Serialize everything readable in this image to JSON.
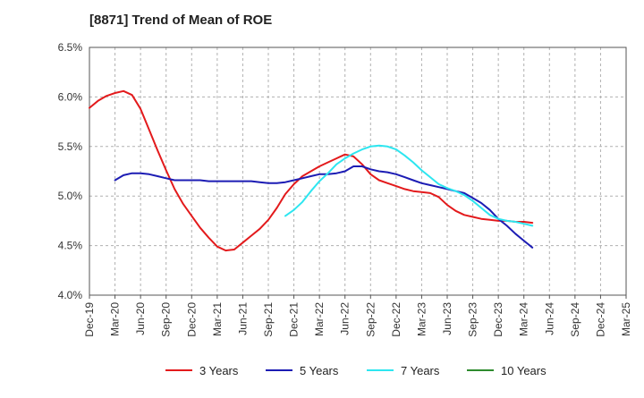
{
  "chart_data": {
    "type": "line",
    "title": "[8871]  Trend of Mean of ROE",
    "xlabel": "",
    "ylabel": "",
    "x_ticks": [
      "Dec-19",
      "Mar-20",
      "Jun-20",
      "Sep-20",
      "Dec-20",
      "Mar-21",
      "Jun-21",
      "Sep-21",
      "Dec-21",
      "Mar-22",
      "Jun-22",
      "Sep-22",
      "Dec-22",
      "Mar-23",
      "Jun-23",
      "Sep-23",
      "Dec-23",
      "Mar-24",
      "Jun-24",
      "Sep-24",
      "Dec-24",
      "Mar-25"
    ],
    "y_ticks": [
      "4.0%",
      "4.5%",
      "5.0%",
      "5.5%",
      "6.0%",
      "6.5%"
    ],
    "ylim": [
      4.0,
      6.5
    ],
    "grid": "horizontal dashed",
    "legend_position": "bottom",
    "series": [
      {
        "name": "3 Years",
        "color": "#e31a1c",
        "values": [
          [
            0,
            5.89
          ],
          [
            1,
            5.96
          ],
          [
            2,
            6.01
          ],
          [
            3,
            6.04
          ],
          [
            4,
            6.06
          ],
          [
            5,
            6.02
          ],
          [
            6,
            5.88
          ],
          [
            7,
            5.67
          ],
          [
            8,
            5.46
          ],
          [
            9,
            5.26
          ],
          [
            10,
            5.07
          ],
          [
            11,
            4.92
          ],
          [
            12,
            4.8
          ],
          [
            13,
            4.68
          ],
          [
            14,
            4.58
          ],
          [
            15,
            4.49
          ],
          [
            16,
            4.45
          ],
          [
            17,
            4.46
          ],
          [
            18,
            4.53
          ],
          [
            19,
            4.6
          ],
          [
            20,
            4.67
          ],
          [
            21,
            4.76
          ],
          [
            22,
            4.88
          ],
          [
            23,
            5.02
          ],
          [
            24,
            5.12
          ],
          [
            25,
            5.2
          ],
          [
            26,
            5.25
          ],
          [
            27,
            5.3
          ],
          [
            28,
            5.34
          ],
          [
            29,
            5.38
          ],
          [
            30,
            5.42
          ],
          [
            31,
            5.4
          ],
          [
            32,
            5.32
          ],
          [
            33,
            5.22
          ],
          [
            34,
            5.16
          ],
          [
            35,
            5.13
          ],
          [
            36,
            5.1
          ],
          [
            37,
            5.07
          ],
          [
            38,
            5.05
          ],
          [
            39,
            5.04
          ],
          [
            40,
            5.03
          ],
          [
            41,
            4.99
          ],
          [
            42,
            4.91
          ],
          [
            43,
            4.85
          ],
          [
            44,
            4.81
          ],
          [
            45,
            4.79
          ],
          [
            46,
            4.77
          ],
          [
            47,
            4.76
          ],
          [
            48,
            4.75
          ],
          [
            49,
            4.75
          ],
          [
            50,
            4.74
          ],
          [
            51,
            4.74
          ],
          [
            52,
            4.73
          ]
        ]
      },
      {
        "name": "5 Years",
        "color": "#1c1cb4",
        "values": [
          [
            3,
            5.16
          ],
          [
            4,
            5.21
          ],
          [
            5,
            5.23
          ],
          [
            6,
            5.23
          ],
          [
            7,
            5.22
          ],
          [
            8,
            5.2
          ],
          [
            9,
            5.18
          ],
          [
            10,
            5.16
          ],
          [
            11,
            5.16
          ],
          [
            12,
            5.16
          ],
          [
            13,
            5.16
          ],
          [
            14,
            5.15
          ],
          [
            15,
            5.15
          ],
          [
            16,
            5.15
          ],
          [
            17,
            5.15
          ],
          [
            18,
            5.15
          ],
          [
            19,
            5.15
          ],
          [
            20,
            5.14
          ],
          [
            21,
            5.13
          ],
          [
            22,
            5.13
          ],
          [
            23,
            5.14
          ],
          [
            24,
            5.16
          ],
          [
            25,
            5.18
          ],
          [
            26,
            5.2
          ],
          [
            27,
            5.22
          ],
          [
            28,
            5.22
          ],
          [
            29,
            5.23
          ],
          [
            30,
            5.25
          ],
          [
            31,
            5.3
          ],
          [
            32,
            5.3
          ],
          [
            33,
            5.27
          ],
          [
            34,
            5.25
          ],
          [
            35,
            5.24
          ],
          [
            36,
            5.22
          ],
          [
            37,
            5.19
          ],
          [
            38,
            5.16
          ],
          [
            39,
            5.13
          ],
          [
            40,
            5.11
          ],
          [
            41,
            5.09
          ],
          [
            42,
            5.07
          ],
          [
            43,
            5.05
          ],
          [
            44,
            5.03
          ],
          [
            45,
            4.98
          ],
          [
            46,
            4.93
          ],
          [
            47,
            4.86
          ],
          [
            48,
            4.77
          ],
          [
            49,
            4.7
          ],
          [
            50,
            4.62
          ],
          [
            51,
            4.55
          ],
          [
            52,
            4.48
          ]
        ]
      },
      {
        "name": "7 Years",
        "color": "#2de6f0",
        "values": [
          [
            23,
            4.8
          ],
          [
            24,
            4.86
          ],
          [
            25,
            4.94
          ],
          [
            26,
            5.05
          ],
          [
            27,
            5.15
          ],
          [
            28,
            5.23
          ],
          [
            29,
            5.32
          ],
          [
            30,
            5.38
          ],
          [
            31,
            5.43
          ],
          [
            32,
            5.47
          ],
          [
            33,
            5.5
          ],
          [
            34,
            5.51
          ],
          [
            35,
            5.5
          ],
          [
            36,
            5.47
          ],
          [
            37,
            5.41
          ],
          [
            38,
            5.34
          ],
          [
            39,
            5.26
          ],
          [
            40,
            5.19
          ],
          [
            41,
            5.12
          ],
          [
            42,
            5.08
          ],
          [
            43,
            5.05
          ],
          [
            44,
            5.01
          ],
          [
            45,
            4.95
          ],
          [
            46,
            4.88
          ],
          [
            47,
            4.81
          ],
          [
            48,
            4.77
          ],
          [
            49,
            4.75
          ],
          [
            50,
            4.74
          ],
          [
            51,
            4.72
          ],
          [
            52,
            4.7
          ]
        ]
      },
      {
        "name": "10 Years",
        "color": "#2e8b2e",
        "values": []
      }
    ]
  }
}
